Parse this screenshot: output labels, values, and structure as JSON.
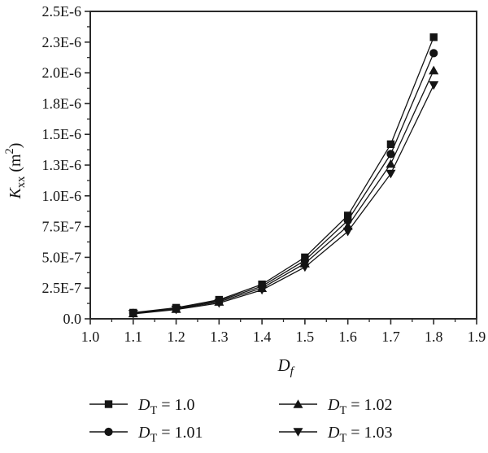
{
  "figure": {
    "background": "#ffffff",
    "foreground": "#141414",
    "frame_color": "#2a2a2a"
  },
  "chart_data": {
    "type": "line",
    "title": "",
    "xlabel_parts": [
      [
        "i",
        "D"
      ],
      [
        "isub",
        "f"
      ]
    ],
    "ylabel_parts": [
      [
        "i",
        "K"
      ],
      [
        "sub",
        "xx"
      ],
      [
        "n",
        " (m"
      ],
      [
        "sup",
        "2"
      ],
      [
        "n",
        ")"
      ]
    ],
    "xlim": [
      1.0,
      1.9
    ],
    "ylim": [
      0,
      2.5e-06
    ],
    "grid": false,
    "x_ticks": [
      1.0,
      1.1,
      1.2,
      1.3,
      1.4,
      1.5,
      1.6,
      1.7,
      1.8,
      1.9
    ],
    "x_tick_labels": [
      "1.0",
      "1.1",
      "1.2",
      "1.3",
      "1.4",
      "1.5",
      "1.6",
      "1.7",
      "1.8",
      "1.9"
    ],
    "x_minor_ticks": [
      1.05,
      1.15,
      1.25,
      1.35,
      1.45,
      1.55,
      1.65,
      1.75,
      1.85
    ],
    "y_ticks": [
      0,
      2.5e-07,
      5e-07,
      7.5e-07,
      1e-06,
      1.25e-06,
      1.5e-06,
      1.75e-06,
      2e-06,
      2.25e-06,
      2.5e-06
    ],
    "y_tick_labels": [
      "0.0",
      "2.5E-7",
      "5.0E-7",
      "7.5E-7",
      "1.0E-6",
      "1.3E-6",
      "1.5E-6",
      "1.8E-6",
      "2.0E-6",
      "2.3E-6",
      "2.5E-6"
    ],
    "y_minor_ticks": [
      1.25e-07,
      3.75e-07,
      6.25e-07,
      8.75e-07,
      1.125e-06,
      1.375e-06,
      1.625e-06,
      1.875e-06,
      2.125e-06,
      2.375e-06
    ],
    "x": [
      1.1,
      1.2,
      1.3,
      1.4,
      1.5,
      1.6,
      1.7,
      1.8
    ],
    "series": [
      {
        "marker": "square",
        "label_parts": [
          [
            "i",
            "D"
          ],
          [
            "sub",
            "T"
          ],
          [
            "n",
            " = 1.0"
          ]
        ],
        "values": [
          5e-08,
          9e-08,
          1.55e-07,
          2.8e-07,
          5e-07,
          8.4e-07,
          1.42e-06,
          2.29e-06
        ]
      },
      {
        "marker": "circle",
        "label_parts": [
          [
            "i",
            "D"
          ],
          [
            "sub",
            "T"
          ],
          [
            "n",
            " = 1.01"
          ]
        ],
        "values": [
          4.7e-08,
          8.5e-08,
          1.47e-07,
          2.65e-07,
          4.75e-07,
          8e-07,
          1.34e-06,
          2.16e-06
        ]
      },
      {
        "marker": "triangle-up",
        "label_parts": [
          [
            "i",
            "D"
          ],
          [
            "sub",
            "T"
          ],
          [
            "n",
            " = 1.02"
          ]
        ],
        "values": [
          4.4e-08,
          8e-08,
          1.38e-07,
          2.5e-07,
          4.5e-07,
          7.55e-07,
          1.26e-06,
          2.02e-06
        ]
      },
      {
        "marker": "triangle-down",
        "label_parts": [
          [
            "i",
            "D"
          ],
          [
            "sub",
            "T"
          ],
          [
            "n",
            " = 1.03"
          ]
        ],
        "values": [
          4e-08,
          7.5e-08,
          1.28e-07,
          2.35e-07,
          4.2e-07,
          7.1e-07,
          1.18e-06,
          1.9e-06
        ]
      }
    ],
    "legend": {
      "position": "below",
      "columns": 2,
      "order": "column-major"
    },
    "line_color": "#141414",
    "marker_color": "#141414"
  }
}
